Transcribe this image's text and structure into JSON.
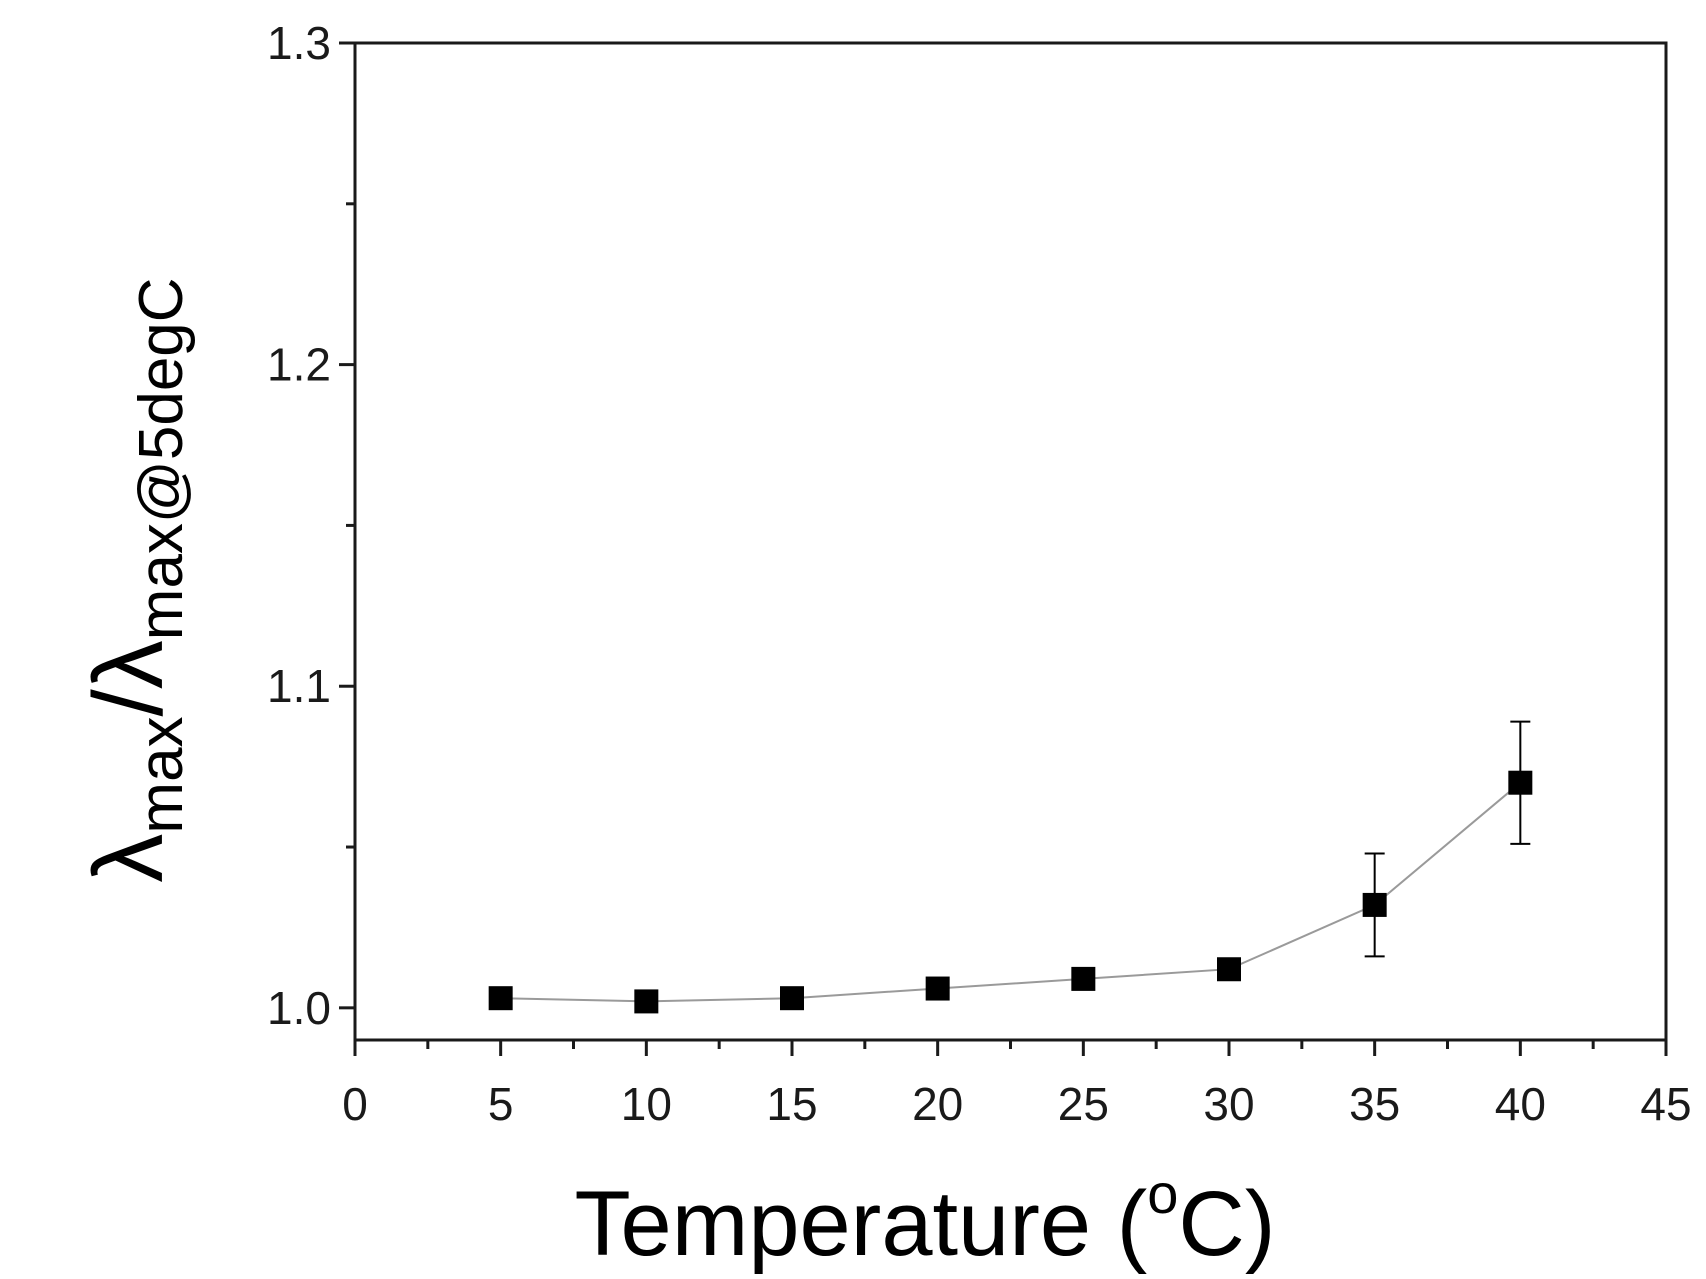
{
  "chart_data": {
    "type": "scatter",
    "title": "",
    "xlabel": "Temperature (",
    "xlabel_sup": "o",
    "xlabel_tail": "C)",
    "ylabel_main": "λ",
    "ylabel_sub1": "max",
    "ylabel_slash": "/λ",
    "ylabel_sub2": "max@5degC",
    "xlim": [
      0,
      45
    ],
    "ylim": [
      0.99,
      1.3
    ],
    "xticks": [
      0,
      5,
      10,
      15,
      20,
      25,
      30,
      35,
      40,
      45
    ],
    "xtick_labels": [
      "0",
      "5",
      "10",
      "15",
      "20",
      "25",
      "30",
      "35",
      "40",
      "45"
    ],
    "yticks": [
      1.0,
      1.1,
      1.2,
      1.3
    ],
    "ytick_labels": [
      "1.0",
      "1.1",
      "1.2",
      "1.3"
    ],
    "grid": false,
    "legend": "none",
    "marker": "square",
    "connect_points": true,
    "series": [
      {
        "x": [
          5,
          10,
          15,
          20,
          25,
          30,
          35,
          40
        ],
        "y": [
          1.003,
          1.002,
          1.003,
          1.006,
          1.009,
          1.012,
          1.032,
          1.07
        ],
        "yerr": [
          0,
          0,
          0,
          0,
          0,
          0,
          0.016,
          0.019
        ]
      }
    ],
    "colors": {
      "marker": "#000000",
      "line": "#9a9a9a",
      "axis": "#1a1a1a"
    }
  }
}
